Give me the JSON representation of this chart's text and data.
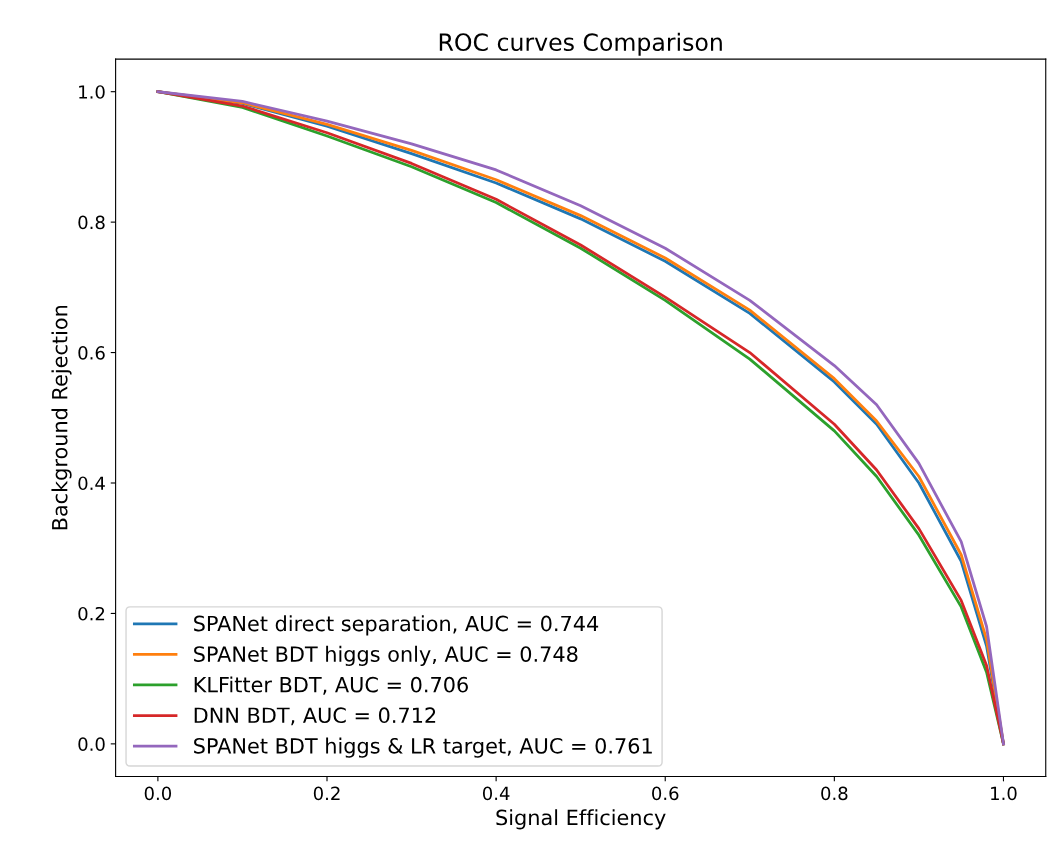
{
  "chart_data": {
    "type": "line",
    "title": "ROC curves Comparison",
    "xlabel": "Signal Efficiency",
    "ylabel": "Background Rejection",
    "x": [
      0,
      0.1,
      0.2,
      0.3,
      0.4,
      0.5,
      0.6,
      0.7,
      0.8,
      0.85,
      0.9,
      0.95,
      0.98,
      1.0
    ],
    "series": [
      {
        "name": "SPANet direct separation, AUC = 0.744",
        "color": "#1f77b4",
        "values": [
          1.0,
          0.982,
          0.947,
          0.905,
          0.86,
          0.805,
          0.74,
          0.66,
          0.555,
          0.49,
          0.4,
          0.28,
          0.15,
          0.0
        ]
      },
      {
        "name": "SPANet BDT higgs only, AUC = 0.748",
        "color": "#ff7f0e",
        "values": [
          1.0,
          0.983,
          0.95,
          0.91,
          0.865,
          0.81,
          0.745,
          0.665,
          0.56,
          0.495,
          0.41,
          0.29,
          0.16,
          0.0
        ]
      },
      {
        "name": "KLFitter BDT, AUC = 0.706",
        "color": "#2ca02c",
        "values": [
          1.0,
          0.976,
          0.932,
          0.885,
          0.83,
          0.76,
          0.68,
          0.59,
          0.48,
          0.41,
          0.32,
          0.21,
          0.11,
          0.0
        ]
      },
      {
        "name": "DNN BDT, AUC = 0.712",
        "color": "#d62728",
        "values": [
          1.0,
          0.978,
          0.937,
          0.89,
          0.835,
          0.765,
          0.685,
          0.6,
          0.49,
          0.42,
          0.33,
          0.22,
          0.12,
          0.0
        ]
      },
      {
        "name": "SPANet BDT higgs & LR target, AUC = 0.761",
        "color": "#9467bd",
        "values": [
          1.0,
          0.985,
          0.955,
          0.92,
          0.88,
          0.825,
          0.76,
          0.68,
          0.58,
          0.52,
          0.43,
          0.31,
          0.18,
          0.0
        ]
      }
    ],
    "xlim": [
      -0.05,
      1.05
    ],
    "ylim": [
      -0.05,
      1.05
    ],
    "xticks": [
      {
        "value": 0,
        "label": "0.0"
      },
      0.2,
      0.4,
      0.6,
      0.8,
      {
        "value": 1,
        "label": "1.0"
      }
    ],
    "yticks": [
      {
        "value": 0,
        "label": "0.0"
      },
      0.2,
      0.4,
      0.6,
      0.8,
      {
        "value": 1,
        "label": "1.0"
      }
    ],
    "grid": false,
    "legend": "bottom left",
    "line_style": "solid",
    "marker": "none"
  }
}
